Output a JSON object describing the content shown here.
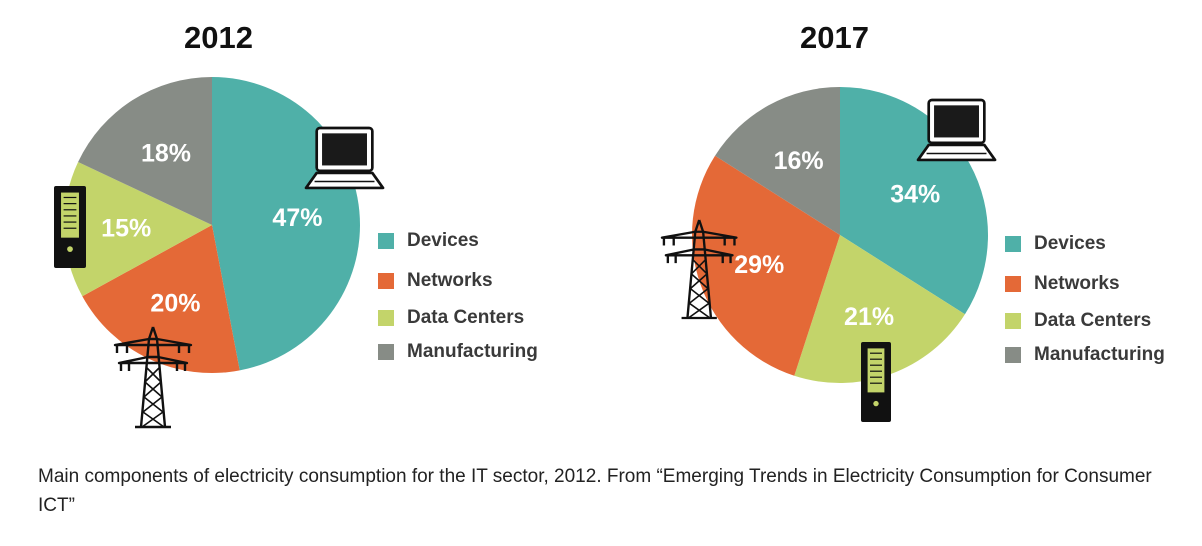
{
  "chart_data": [
    {
      "type": "pie",
      "title": "2012",
      "slices": [
        {
          "label": "Devices",
          "value": 47,
          "text": "47%"
        },
        {
          "label": "Networks",
          "value": 20,
          "text": "20%"
        },
        {
          "label": "Data Centers",
          "value": 15,
          "text": "15%"
        },
        {
          "label": "Manufacturing",
          "value": 18,
          "text": "18%"
        }
      ],
      "legend": [
        "Devices",
        "Networks",
        "Data Centers",
        "Manufacturing"
      ],
      "legend_position": "right"
    },
    {
      "type": "pie",
      "title": "2017",
      "slices": [
        {
          "label": "Devices",
          "value": 34,
          "text": "34%"
        },
        {
          "label": "Data Centers",
          "value": 21,
          "text": "21%"
        },
        {
          "label": "Networks",
          "value": 29,
          "text": "29%"
        },
        {
          "label": "Manufacturing",
          "value": 16,
          "text": "16%"
        }
      ],
      "legend": [
        "Devices",
        "Networks",
        "Data Centers",
        "Manufacturing"
      ],
      "legend_position": "right"
    }
  ],
  "colors": {
    "Devices": "#4fb0a8",
    "Networks": "#e46937",
    "Data Centers": "#c3d46a",
    "Manufacturing": "#878c86"
  },
  "icons": [
    "laptop-icon",
    "server-icon",
    "power-tower-icon"
  ],
  "caption": "Main components of electricity consumption for the IT sector, 2012. From “Emerging Trends in Electricity Consumption for Consumer ICT”"
}
